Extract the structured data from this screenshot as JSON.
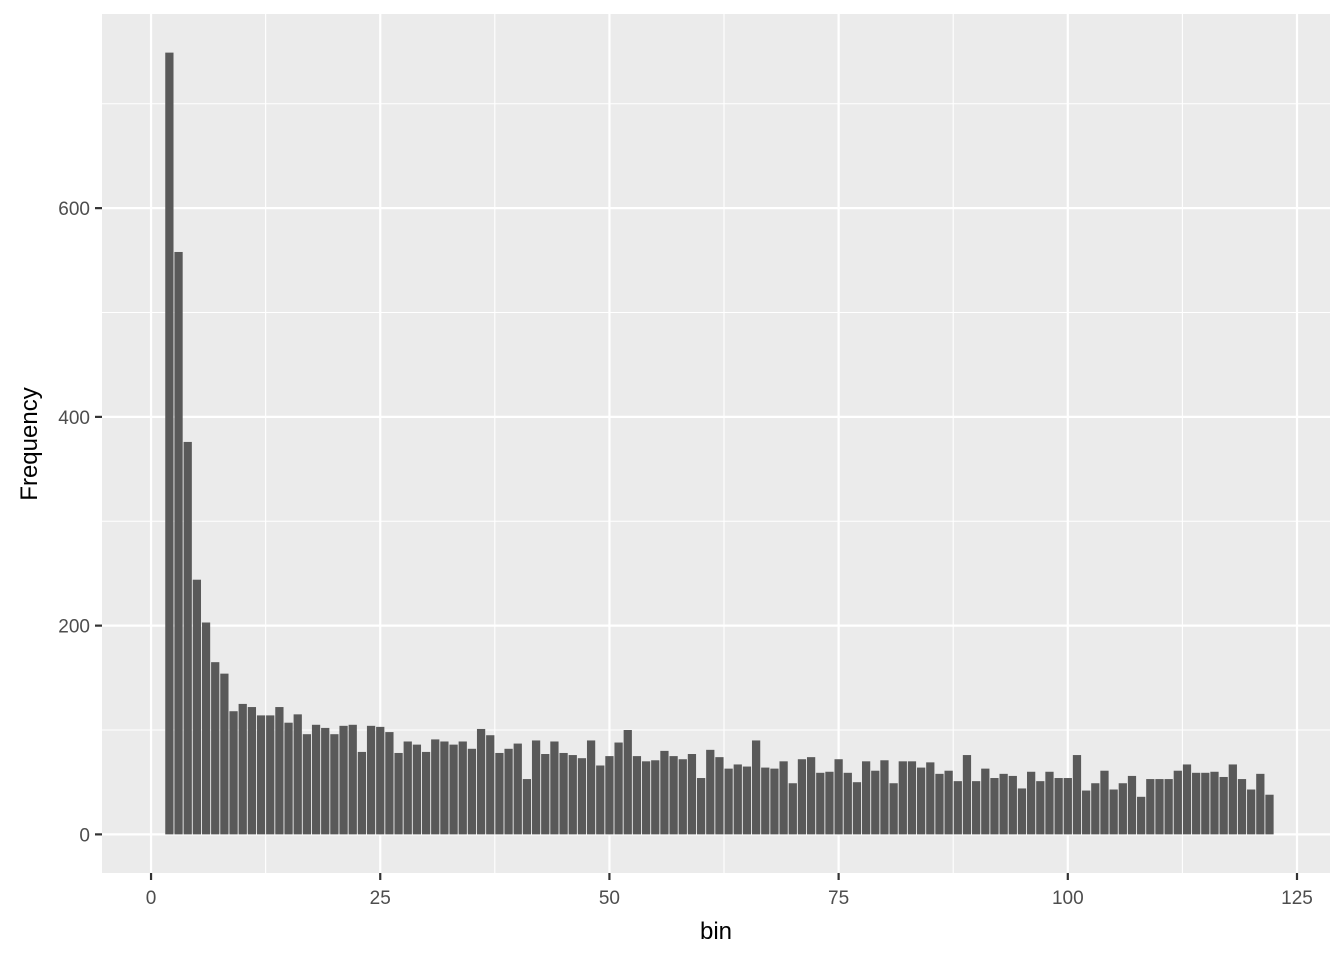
{
  "chart_data": {
    "type": "bar",
    "title": "",
    "xlabel": "bin",
    "ylabel": "Frequency",
    "xlim": [
      -5.35,
      128.6
    ],
    "ylim": [
      -37,
      786
    ],
    "x_ticks": [
      0,
      25,
      50,
      75,
      100,
      125
    ],
    "y_ticks": [
      0,
      200,
      400,
      600
    ],
    "grid": true,
    "bar_color": "#595959",
    "panel_color": "#ebebeb",
    "x": [
      2,
      3,
      4,
      5,
      6,
      7,
      8,
      9,
      10,
      11,
      12,
      13,
      14,
      15,
      16,
      17,
      18,
      19,
      20,
      21,
      22,
      23,
      24,
      25,
      26,
      27,
      28,
      29,
      30,
      31,
      32,
      33,
      34,
      35,
      36,
      37,
      38,
      39,
      40,
      41,
      42,
      43,
      44,
      45,
      46,
      47,
      48,
      49,
      50,
      51,
      52,
      53,
      54,
      55,
      56,
      57,
      58,
      59,
      60,
      61,
      62,
      63,
      64,
      65,
      66,
      67,
      68,
      69,
      70,
      71,
      72,
      73,
      74,
      75,
      76,
      77,
      78,
      79,
      80,
      81,
      82,
      83,
      84,
      85,
      86,
      87,
      88,
      89,
      90,
      91,
      92,
      93,
      94,
      95,
      96,
      97,
      98,
      99,
      100,
      101,
      102,
      103,
      104,
      105,
      106,
      107,
      108,
      109,
      110,
      111,
      112,
      113,
      114,
      115,
      116,
      117,
      118,
      119,
      120,
      121,
      122
    ],
    "values": [
      749,
      558,
      376,
      244,
      203,
      165,
      154,
      118,
      125,
      122,
      114,
      114,
      122,
      107,
      115,
      96,
      105,
      102,
      96,
      104,
      105,
      79,
      104,
      103,
      98,
      78,
      89,
      86,
      79,
      91,
      89,
      86,
      89,
      82,
      101,
      95,
      78,
      82,
      87,
      53,
      90,
      77,
      89,
      78,
      76,
      73,
      90,
      66,
      75,
      88,
      100,
      75,
      70,
      71,
      80,
      75,
      72,
      77,
      54,
      81,
      74,
      63,
      67,
      65,
      90,
      64,
      63,
      70,
      49,
      72,
      74,
      59,
      60,
      72,
      59,
      50,
      70,
      61,
      71,
      49,
      70,
      70,
      64,
      69,
      58,
      61,
      51,
      76,
      51,
      63,
      54,
      58,
      56,
      44,
      60,
      51,
      60,
      54,
      54,
      76,
      42,
      49,
      61,
      43,
      49,
      56,
      36,
      53,
      53,
      53,
      61,
      67,
      59,
      59,
      60,
      55,
      67,
      53,
      43,
      58,
      38
    ]
  }
}
